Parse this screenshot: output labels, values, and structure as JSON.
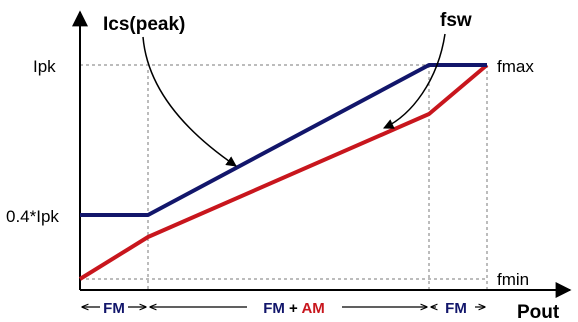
{
  "labels": {
    "ics_peak": "Ics(peak)",
    "fsw": "fsw",
    "ipk": "Ipk",
    "ipk_min": "0.4*Ipk",
    "fmax": "fmax",
    "fmin": "fmin",
    "pout": "Pout"
  },
  "regions": {
    "left": "FM",
    "middle_fm": "FM",
    "middle_plus": " + ",
    "middle_am": "AM",
    "right": "FM"
  },
  "colors": {
    "current_curve": "#12166b",
    "frequency_curve": "#c8161d",
    "axis": "#000000",
    "guide": "#7a7a7a",
    "fm_text": "#12166b",
    "am_text": "#c8161d"
  }
}
